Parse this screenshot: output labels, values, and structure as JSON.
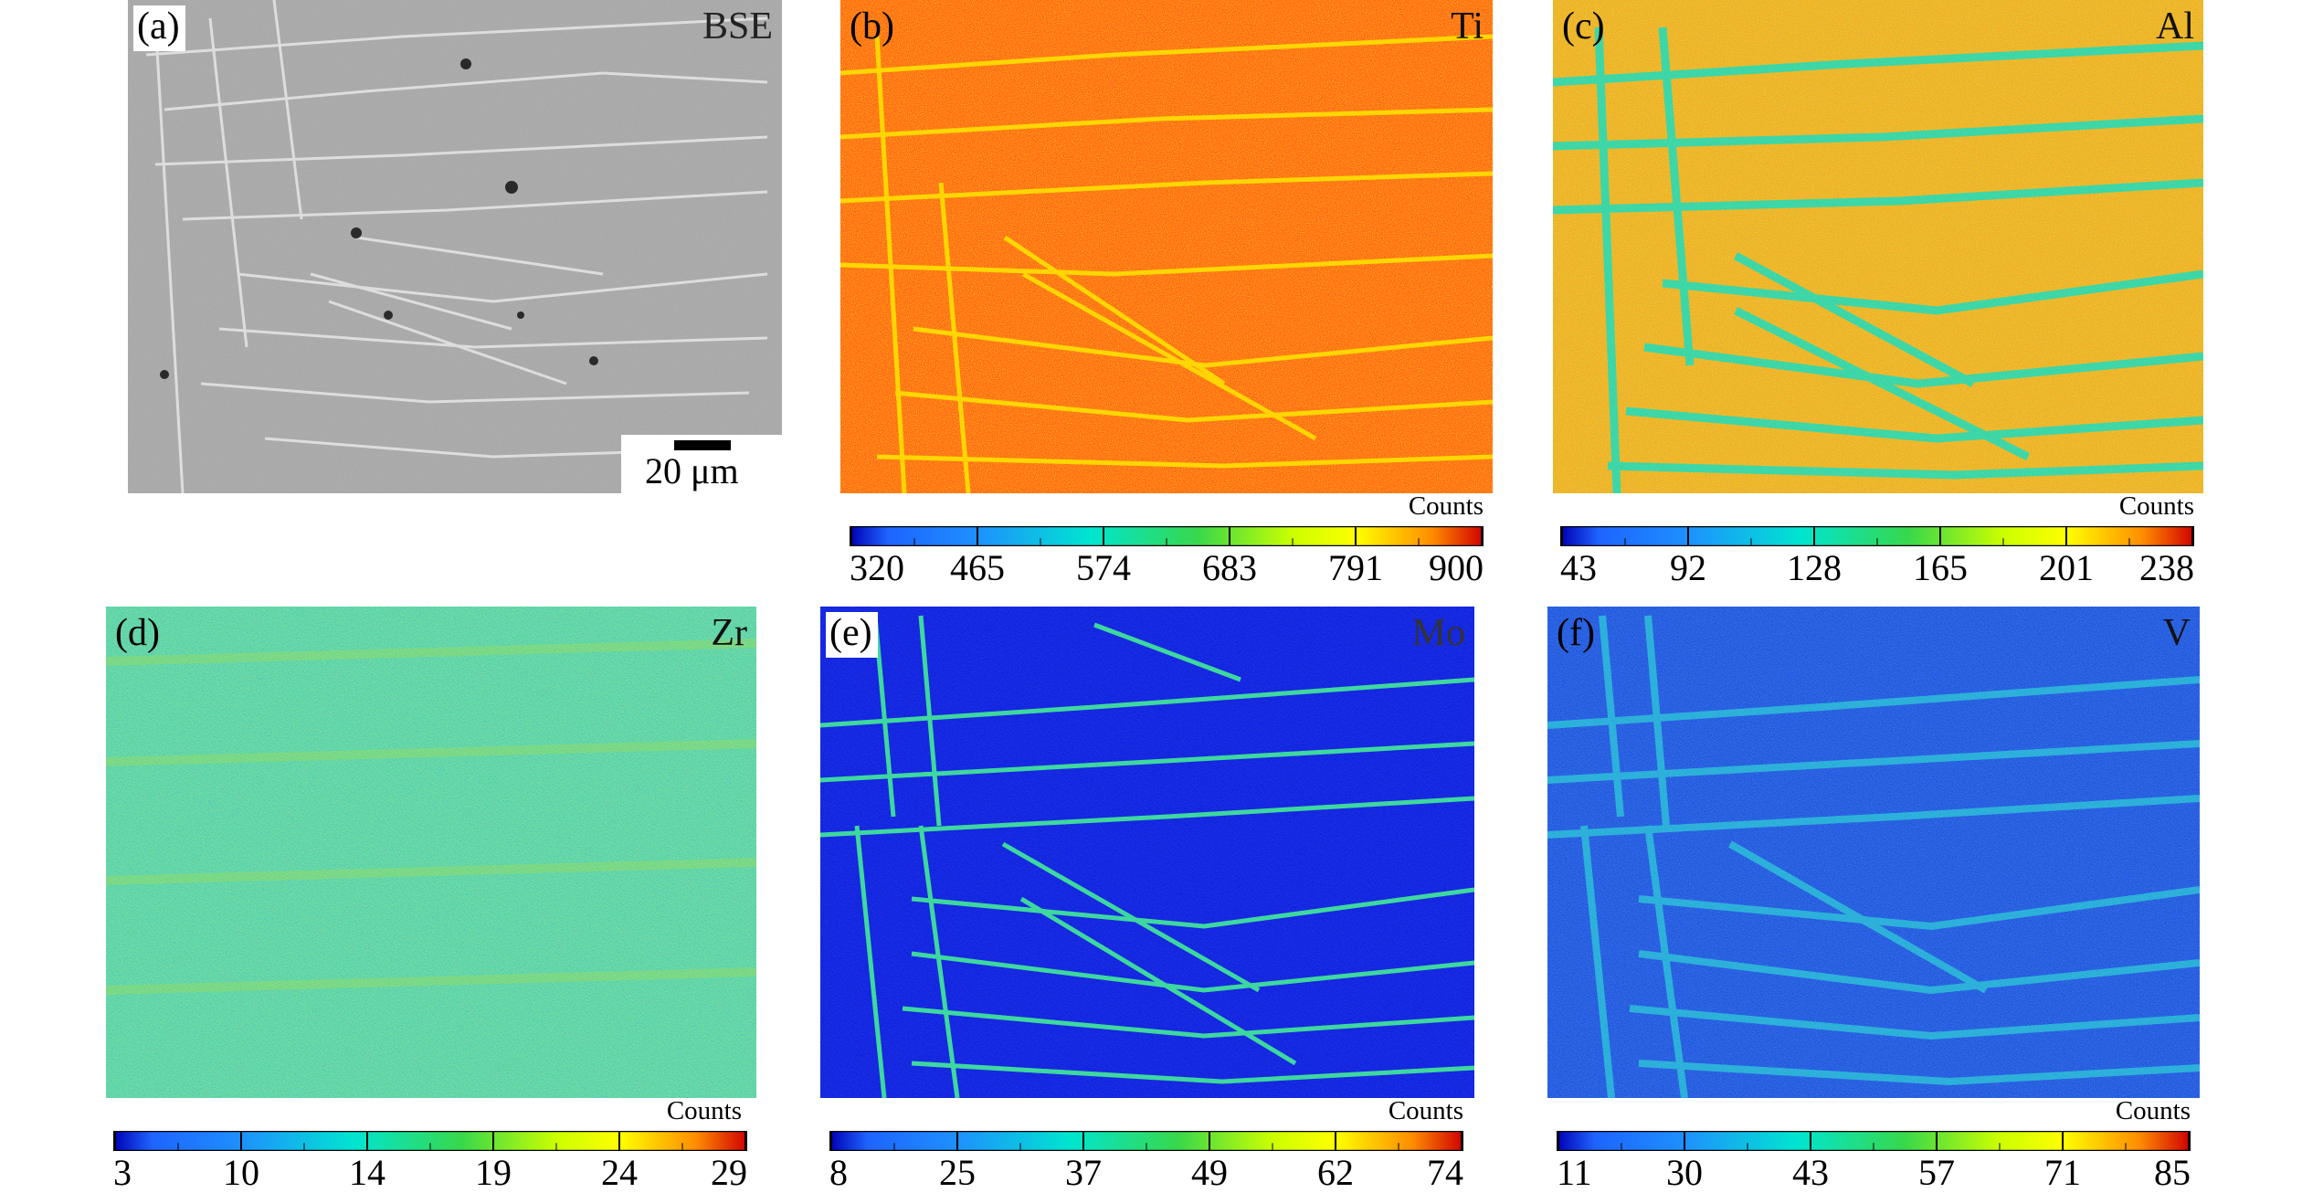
{
  "panels": [
    {
      "id": "a",
      "label": "(a)",
      "element": "BSE",
      "scale_bar": "20 μm"
    },
    {
      "id": "b",
      "label": "(b)",
      "element": "Ti",
      "colorbar": {
        "title": "Counts",
        "ticks": [
          "320",
          "465",
          "574",
          "683",
          "791",
          "900"
        ]
      }
    },
    {
      "id": "c",
      "label": "(c)",
      "element": "Al",
      "colorbar": {
        "title": "Counts",
        "ticks": [
          "43",
          "92",
          "128",
          "165",
          "201",
          "238"
        ]
      }
    },
    {
      "id": "d",
      "label": "(d)",
      "element": "Zr",
      "colorbar": {
        "title": "Counts",
        "ticks": [
          "3",
          "10",
          "14",
          "19",
          "24",
          "29"
        ]
      }
    },
    {
      "id": "e",
      "label": "(e)",
      "element": "Mo",
      "colorbar": {
        "title": "Counts",
        "ticks": [
          "8",
          "25",
          "37",
          "49",
          "62",
          "74"
        ]
      }
    },
    {
      "id": "f",
      "label": "(f)",
      "element": "V",
      "colorbar": {
        "title": "Counts",
        "ticks": [
          "11",
          "30",
          "43",
          "57",
          "71",
          "85"
        ]
      }
    }
  ],
  "colors": {
    "scale_start": "#0000b4",
    "scale_low": "#1e90ff",
    "scale_mid_low": "#00e5d0",
    "scale_mid": "#38d84a",
    "scale_mid_high": "#ffff00",
    "scale_high": "#ff8c00",
    "scale_end": "#d00000",
    "bse_gray": "#a7a7a7"
  }
}
